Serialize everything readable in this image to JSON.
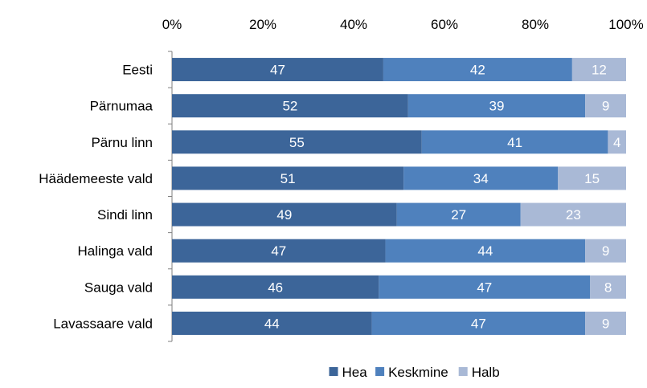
{
  "chart_data": {
    "type": "bar",
    "orientation": "horizontal",
    "stacked": "percent",
    "categories": [
      "Eesti",
      "Pärnumaa",
      "Pärnu linn",
      "Häädemeeste vald",
      "Sindi linn",
      "Halinga vald",
      "Sauga vald",
      "Lavassaare vald"
    ],
    "series": [
      {
        "name": "Hea",
        "values": [
          47,
          52,
          55,
          51,
          49,
          47,
          46,
          44
        ],
        "color": "#3c6599"
      },
      {
        "name": "Keskmine",
        "values": [
          42,
          39,
          41,
          34,
          27,
          44,
          47,
          47
        ],
        "color": "#4f81bd"
      },
      {
        "name": "Halb",
        "values": [
          12,
          9,
          4,
          15,
          23,
          9,
          8,
          9
        ],
        "color": "#a9b9d6"
      }
    ],
    "xaxis": {
      "ticks": [
        "0%",
        "20%",
        "40%",
        "60%",
        "80%",
        "100%"
      ],
      "position": "top",
      "range": [
        0,
        100
      ]
    },
    "grid": false,
    "legend": "bottom",
    "title": "",
    "xlabel": "",
    "ylabel": ""
  }
}
